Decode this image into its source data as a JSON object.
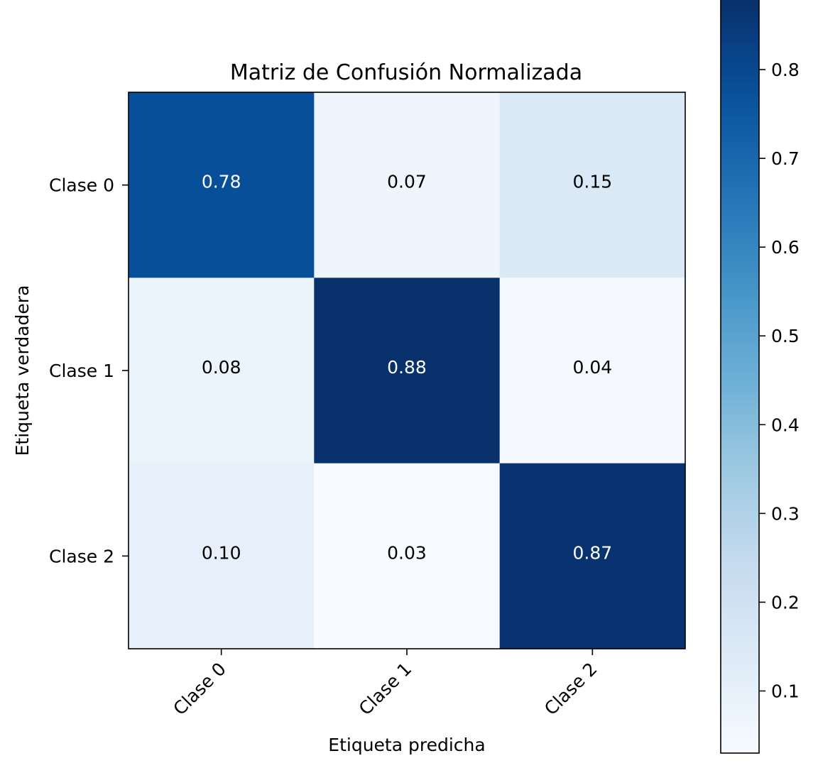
{
  "chart_data": {
    "type": "heatmap",
    "title": "Matriz de Confusión Normalizada",
    "xlabel": "Etiqueta predicha",
    "ylabel": "Etiqueta verdadera",
    "x_categories": [
      "Clase 0",
      "Clase 1",
      "Clase 2"
    ],
    "y_categories": [
      "Clase 0",
      "Clase 1",
      "Clase 2"
    ],
    "values": [
      [
        0.78,
        0.07,
        0.15
      ],
      [
        0.08,
        0.88,
        0.04
      ],
      [
        0.1,
        0.03,
        0.87
      ]
    ],
    "value_labels": [
      [
        "0.78",
        "0.07",
        "0.15"
      ],
      [
        "0.08",
        "0.88",
        "0.04"
      ],
      [
        "0.10",
        "0.03",
        "0.87"
      ]
    ],
    "colormap": "Blues",
    "colorbar": {
      "range": [
        0.03,
        0.88
      ],
      "ticks": [
        0.1,
        0.2,
        0.3,
        0.4,
        0.5,
        0.6,
        0.7,
        0.8
      ],
      "tick_labels": [
        "0.1",
        "0.2",
        "0.3",
        "0.4",
        "0.5",
        "0.6",
        "0.7",
        "0.8"
      ]
    },
    "x_tick_rotation_deg": 45
  }
}
